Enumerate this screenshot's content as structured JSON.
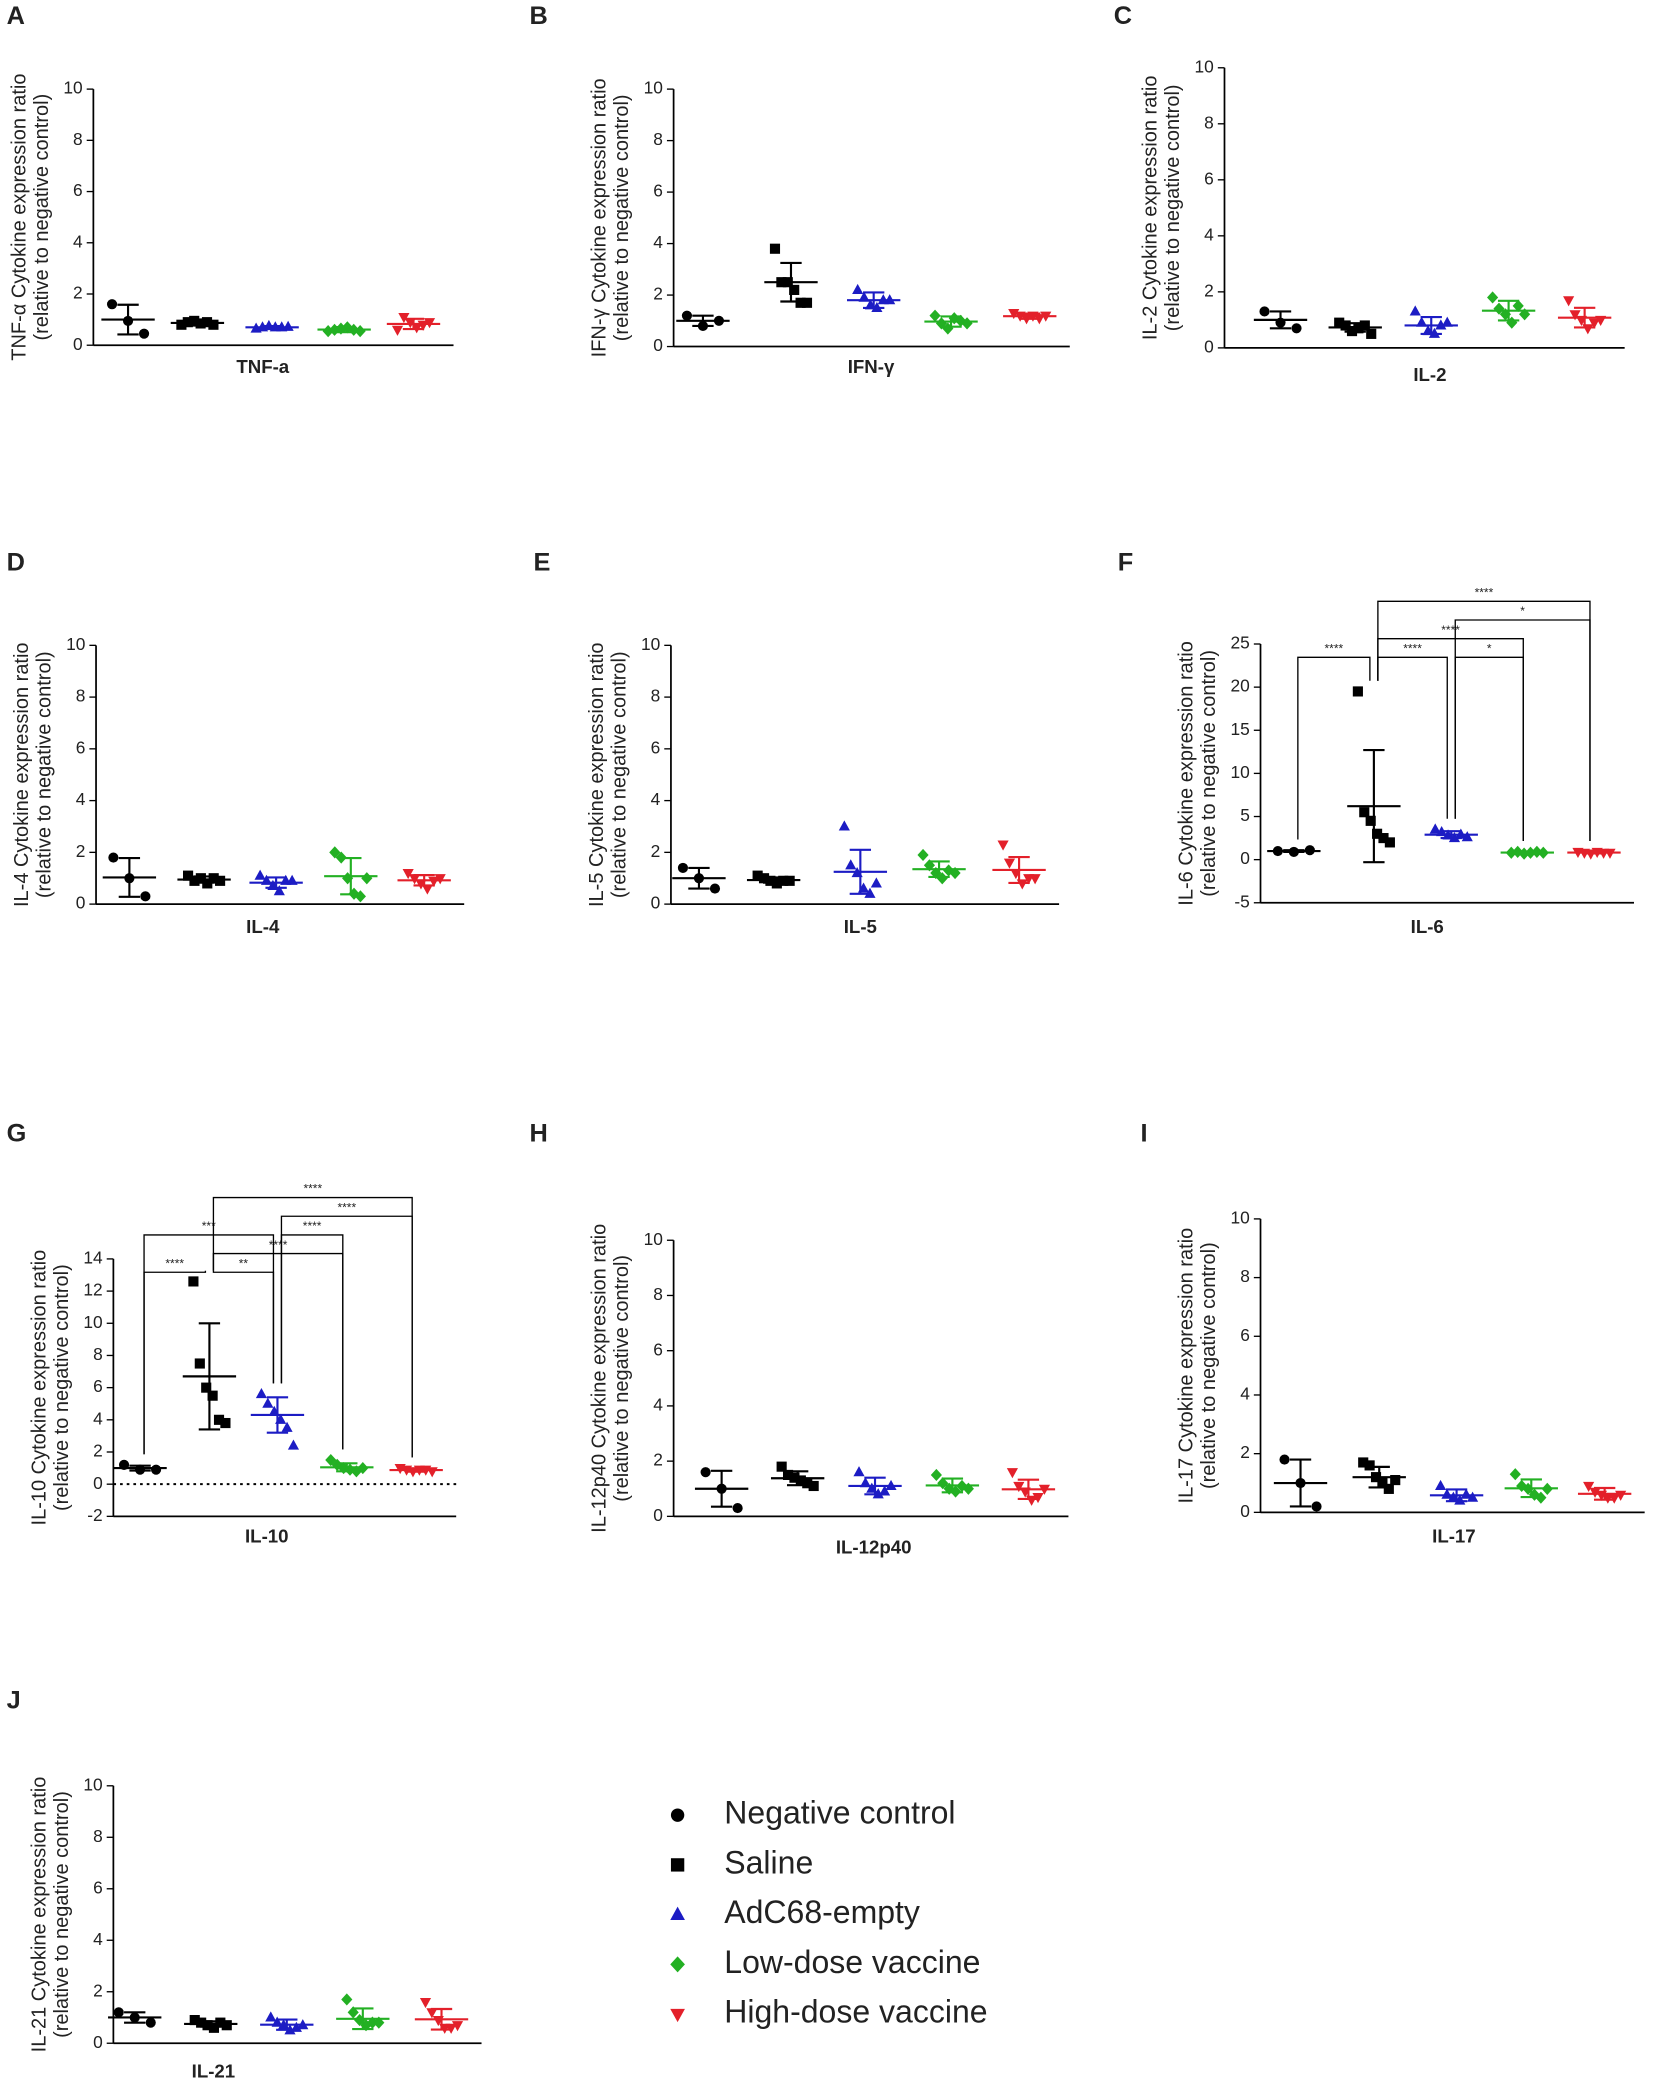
{
  "legend": {
    "entries": [
      {
        "name": "Negative control",
        "color": "#000000",
        "marker": "circle"
      },
      {
        "name": "Saline",
        "color": "#000000",
        "marker": "square"
      },
      {
        "name": "AdC68-empty",
        "color": "#1c1cc4",
        "marker": "triangle-up"
      },
      {
        "name": "Low-dose vaccine",
        "color": "#23b023",
        "marker": "diamond"
      },
      {
        "name": "High-dose vaccine",
        "color": "#e3202a",
        "marker": "triangle-down"
      }
    ]
  },
  "chart_data": [
    {
      "type": "scatter",
      "panel": "A",
      "ylabel": [
        "TNF-α Cytokine expression ratio",
        "(relative to negative control)"
      ],
      "xlabel": "TNF-a",
      "ylim": [
        0,
        10
      ],
      "yticks": [
        0,
        2,
        4,
        6,
        8,
        10
      ],
      "series": [
        {
          "values": [
            1.6,
            0.95,
            0.45
          ],
          "mean": 1.0,
          "sd": 0.58
        },
        {
          "values": [
            0.8,
            0.9,
            0.95,
            0.85,
            0.9,
            0.8
          ],
          "mean": 0.87,
          "sd": 0.1
        },
        {
          "values": [
            0.65,
            0.7,
            0.75,
            0.7,
            0.7,
            0.72
          ],
          "mean": 0.7,
          "sd": 0.05
        },
        {
          "values": [
            0.55,
            0.6,
            0.65,
            0.7,
            0.6,
            0.55
          ],
          "mean": 0.61,
          "sd": 0.1
        },
        {
          "values": [
            0.6,
            1.1,
            0.9,
            0.7,
            0.8,
            0.9
          ],
          "mean": 0.83,
          "sd": 0.2
        }
      ]
    },
    {
      "type": "scatter",
      "panel": "B",
      "ylabel": [
        "IFN-γ Cytokine expression ratio",
        "(relative to negative control)"
      ],
      "xlabel": "IFN-γ",
      "ylim": [
        0,
        10
      ],
      "yticks": [
        0,
        2,
        4,
        6,
        8,
        10
      ],
      "series": [
        {
          "values": [
            1.2,
            0.8,
            1.0
          ],
          "mean": 1.0,
          "sd": 0.2
        },
        {
          "values": [
            3.8,
            2.5,
            2.5,
            2.2,
            1.7,
            1.7
          ],
          "mean": 2.5,
          "sd": 0.75
        },
        {
          "values": [
            2.2,
            1.9,
            1.6,
            1.5,
            1.8,
            1.8
          ],
          "mean": 1.8,
          "sd": 0.3
        },
        {
          "values": [
            1.2,
            0.9,
            0.7,
            1.1,
            1.0,
            0.9
          ],
          "mean": 0.97,
          "sd": 0.2
        },
        {
          "values": [
            1.3,
            1.2,
            1.1,
            1.2,
            1.1,
            1.2
          ],
          "mean": 1.18,
          "sd": 0.1
        }
      ]
    },
    {
      "type": "scatter",
      "panel": "C",
      "ylabel": [
        "IL-2 Cytokine expression ratio",
        "(relative to negative control)"
      ],
      "xlabel": "IL-2",
      "ylim": [
        0,
        10
      ],
      "yticks": [
        0,
        2,
        4,
        6,
        8,
        10
      ],
      "series": [
        {
          "values": [
            1.3,
            0.9,
            0.7
          ],
          "mean": 1.0,
          "sd": 0.3
        },
        {
          "values": [
            0.9,
            0.8,
            0.6,
            0.7,
            0.8,
            0.5
          ],
          "mean": 0.73,
          "sd": 0.15
        },
        {
          "values": [
            1.3,
            0.9,
            0.6,
            0.5,
            0.8,
            0.9
          ],
          "mean": 0.8,
          "sd": 0.3
        },
        {
          "values": [
            1.8,
            1.4,
            1.2,
            0.9,
            1.5,
            1.2
          ],
          "mean": 1.33,
          "sd": 0.35
        },
        {
          "values": [
            1.7,
            1.2,
            1.0,
            0.7,
            0.9,
            1.0
          ],
          "mean": 1.08,
          "sd": 0.35
        }
      ]
    },
    {
      "type": "scatter",
      "panel": "D",
      "ylabel": [
        "IL-4 Cytokine expression ratio",
        "(relative to negative control)"
      ],
      "xlabel": "IL-4",
      "ylim": [
        0,
        10
      ],
      "yticks": [
        0,
        2,
        4,
        6,
        8,
        10
      ],
      "series": [
        {
          "values": [
            1.8,
            1.0,
            0.3
          ],
          "mean": 1.03,
          "sd": 0.75
        },
        {
          "values": [
            1.1,
            0.9,
            1.0,
            0.8,
            1.0,
            0.9
          ],
          "mean": 0.95,
          "sd": 0.12
        },
        {
          "values": [
            1.1,
            0.9,
            0.7,
            0.5,
            0.9,
            0.9
          ],
          "mean": 0.83,
          "sd": 0.2
        },
        {
          "values": [
            2.0,
            1.8,
            1.0,
            0.4,
            0.3,
            1.0
          ],
          "mean": 1.08,
          "sd": 0.7
        },
        {
          "values": [
            1.2,
            1.0,
            0.8,
            0.6,
            0.9,
            1.0
          ],
          "mean": 0.92,
          "sd": 0.2
        }
      ]
    },
    {
      "type": "scatter",
      "panel": "E",
      "ylabel": [
        "IL-5 Cytokine expression ratio",
        "(relative to negative control)"
      ],
      "xlabel": "IL-5",
      "ylim": [
        0,
        10
      ],
      "yticks": [
        0,
        2,
        4,
        6,
        8,
        10
      ],
      "series": [
        {
          "values": [
            1.4,
            1.0,
            0.6
          ],
          "mean": 1.0,
          "sd": 0.4
        },
        {
          "values": [
            1.1,
            1.0,
            0.9,
            0.8,
            0.9,
            0.9
          ],
          "mean": 0.93,
          "sd": 0.1
        },
        {
          "values": [
            3.0,
            1.5,
            1.2,
            0.6,
            0.4,
            0.8
          ],
          "mean": 1.25,
          "sd": 0.85
        },
        {
          "values": [
            1.9,
            1.5,
            1.2,
            1.0,
            1.3,
            1.2
          ],
          "mean": 1.35,
          "sd": 0.3
        },
        {
          "values": [
            2.3,
            1.6,
            1.2,
            0.8,
            1.0,
            1.0
          ],
          "mean": 1.32,
          "sd": 0.5
        }
      ]
    },
    {
      "type": "scatter",
      "panel": "F",
      "ylabel": [
        "IL-6 Cytokine expression ratio",
        "(relative to negative control)"
      ],
      "xlabel": "IL-6",
      "ylim": [
        -5,
        25
      ],
      "yticks": [
        -5,
        0,
        5,
        10,
        15,
        20,
        25
      ],
      "series": [
        {
          "values": [
            1.0,
            0.9,
            1.1
          ],
          "mean": 1.0,
          "sd": 0.1
        },
        {
          "values": [
            19.5,
            5.5,
            4.5,
            3.0,
            2.5,
            2.0
          ],
          "mean": 6.2,
          "sd": 6.5
        },
        {
          "values": [
            3.5,
            3.2,
            2.8,
            2.5,
            2.9,
            2.6
          ],
          "mean": 2.9,
          "sd": 0.4
        },
        {
          "values": [
            0.8,
            0.9,
            0.7,
            0.8,
            0.9,
            0.8
          ],
          "mean": 0.82,
          "sd": 0.1
        },
        {
          "values": [
            0.9,
            0.8,
            0.7,
            0.9,
            0.8,
            0.8
          ],
          "mean": 0.82,
          "sd": 0.1
        }
      ],
      "comparisons": [
        {
          "pair": [
            0,
            1
          ],
          "label": "****"
        },
        {
          "pair": [
            1,
            2
          ],
          "label": "****"
        },
        {
          "pair": [
            2,
            3
          ],
          "label": "*"
        },
        {
          "pair": [
            1,
            3
          ],
          "label": "****"
        },
        {
          "pair": [
            2,
            4
          ],
          "label": "*"
        },
        {
          "pair": [
            1,
            4
          ],
          "label": "****"
        }
      ]
    },
    {
      "type": "scatter",
      "panel": "G",
      "ylabel": [
        "IL-10 Cytokine expression ratio",
        "(relative to negative control)"
      ],
      "xlabel": "IL-10",
      "ylim": [
        -2,
        14
      ],
      "yticks": [
        -2,
        0,
        2,
        4,
        6,
        8,
        10,
        12,
        14
      ],
      "zero_line": true,
      "series": [
        {
          "values": [
            1.2,
            0.9,
            0.9
          ],
          "mean": 1.0,
          "sd": 0.15
        },
        {
          "values": [
            12.6,
            7.5,
            6.0,
            5.5,
            4.0,
            3.8
          ],
          "mean": 6.7,
          "sd": 3.3
        },
        {
          "values": [
            5.6,
            5.0,
            4.5,
            4.0,
            3.5,
            2.4
          ],
          "mean": 4.3,
          "sd": 1.1
        },
        {
          "values": [
            1.5,
            1.2,
            1.0,
            0.9,
            0.8,
            1.0
          ],
          "mean": 1.05,
          "sd": 0.25
        },
        {
          "values": [
            1.0,
            0.9,
            0.8,
            0.9,
            0.9,
            0.8
          ],
          "mean": 0.88,
          "sd": 0.1
        }
      ],
      "comparisons": [
        {
          "pair": [
            1,
            2
          ],
          "label": "**"
        },
        {
          "pair": [
            0,
            1
          ],
          "label": "****"
        },
        {
          "pair": [
            1,
            3
          ],
          "label": "****"
        },
        {
          "pair": [
            0,
            2
          ],
          "label": "***"
        },
        {
          "pair": [
            2,
            3
          ],
          "label": "****"
        },
        {
          "pair": [
            2,
            4
          ],
          "label": "****"
        },
        {
          "pair": [
            1,
            4
          ],
          "label": "****"
        }
      ]
    },
    {
      "type": "scatter",
      "panel": "H",
      "ylabel": [
        "IL-12p40 Cytokine expression ratio",
        "(relative to negative control)"
      ],
      "xlabel": "IL-12p40",
      "ylim": [
        0,
        10
      ],
      "yticks": [
        0,
        2,
        4,
        6,
        8,
        10
      ],
      "series": [
        {
          "values": [
            1.6,
            1.0,
            0.3
          ],
          "mean": 1.0,
          "sd": 0.65
        },
        {
          "values": [
            1.8,
            1.5,
            1.4,
            1.3,
            1.2,
            1.1
          ],
          "mean": 1.38,
          "sd": 0.25
        },
        {
          "values": [
            1.6,
            1.2,
            1.0,
            0.8,
            0.9,
            1.1
          ],
          "mean": 1.1,
          "sd": 0.3
        },
        {
          "values": [
            1.5,
            1.2,
            1.0,
            0.9,
            1.1,
            1.0
          ],
          "mean": 1.12,
          "sd": 0.25
        },
        {
          "values": [
            1.6,
            1.1,
            0.9,
            0.6,
            0.7,
            1.0
          ],
          "mean": 0.98,
          "sd": 0.35
        }
      ]
    },
    {
      "type": "scatter",
      "panel": "I",
      "ylabel": [
        "IL-17 Cytokine expression ratio",
        "(relative to negative control)"
      ],
      "xlabel": "IL-17",
      "ylim": [
        0,
        10
      ],
      "yticks": [
        0,
        2,
        4,
        6,
        8,
        10
      ],
      "series": [
        {
          "values": [
            1.8,
            1.0,
            0.2
          ],
          "mean": 1.0,
          "sd": 0.8
        },
        {
          "values": [
            1.7,
            1.6,
            1.2,
            1.0,
            0.8,
            1.1
          ],
          "mean": 1.2,
          "sd": 0.35
        },
        {
          "values": [
            0.9,
            0.6,
            0.5,
            0.4,
            0.6,
            0.5
          ],
          "mean": 0.58,
          "sd": 0.2
        },
        {
          "values": [
            1.3,
            0.9,
            0.8,
            0.6,
            0.5,
            0.8
          ],
          "mean": 0.82,
          "sd": 0.3
        },
        {
          "values": [
            0.9,
            0.7,
            0.6,
            0.5,
            0.5,
            0.6
          ],
          "mean": 0.63,
          "sd": 0.2
        }
      ]
    },
    {
      "type": "scatter",
      "panel": "J",
      "ylabel": [
        "IL-21 Cytokine expression ratio",
        "(relative to negative control)"
      ],
      "xlabel": "IL-21",
      "ylim": [
        0,
        10
      ],
      "yticks": [
        0,
        2,
        4,
        6,
        8,
        10
      ],
      "series": [
        {
          "values": [
            1.2,
            1.0,
            0.8
          ],
          "mean": 1.0,
          "sd": 0.2
        },
        {
          "values": [
            0.9,
            0.8,
            0.7,
            0.6,
            0.8,
            0.7
          ],
          "mean": 0.75,
          "sd": 0.1
        },
        {
          "values": [
            1.0,
            0.8,
            0.7,
            0.5,
            0.6,
            0.7
          ],
          "mean": 0.72,
          "sd": 0.2
        },
        {
          "values": [
            1.7,
            1.2,
            0.9,
            0.7,
            0.8,
            0.8
          ],
          "mean": 0.95,
          "sd": 0.4
        },
        {
          "values": [
            1.6,
            1.2,
            0.9,
            0.6,
            0.6,
            0.7
          ],
          "mean": 0.93,
          "sd": 0.4
        }
      ]
    }
  ]
}
